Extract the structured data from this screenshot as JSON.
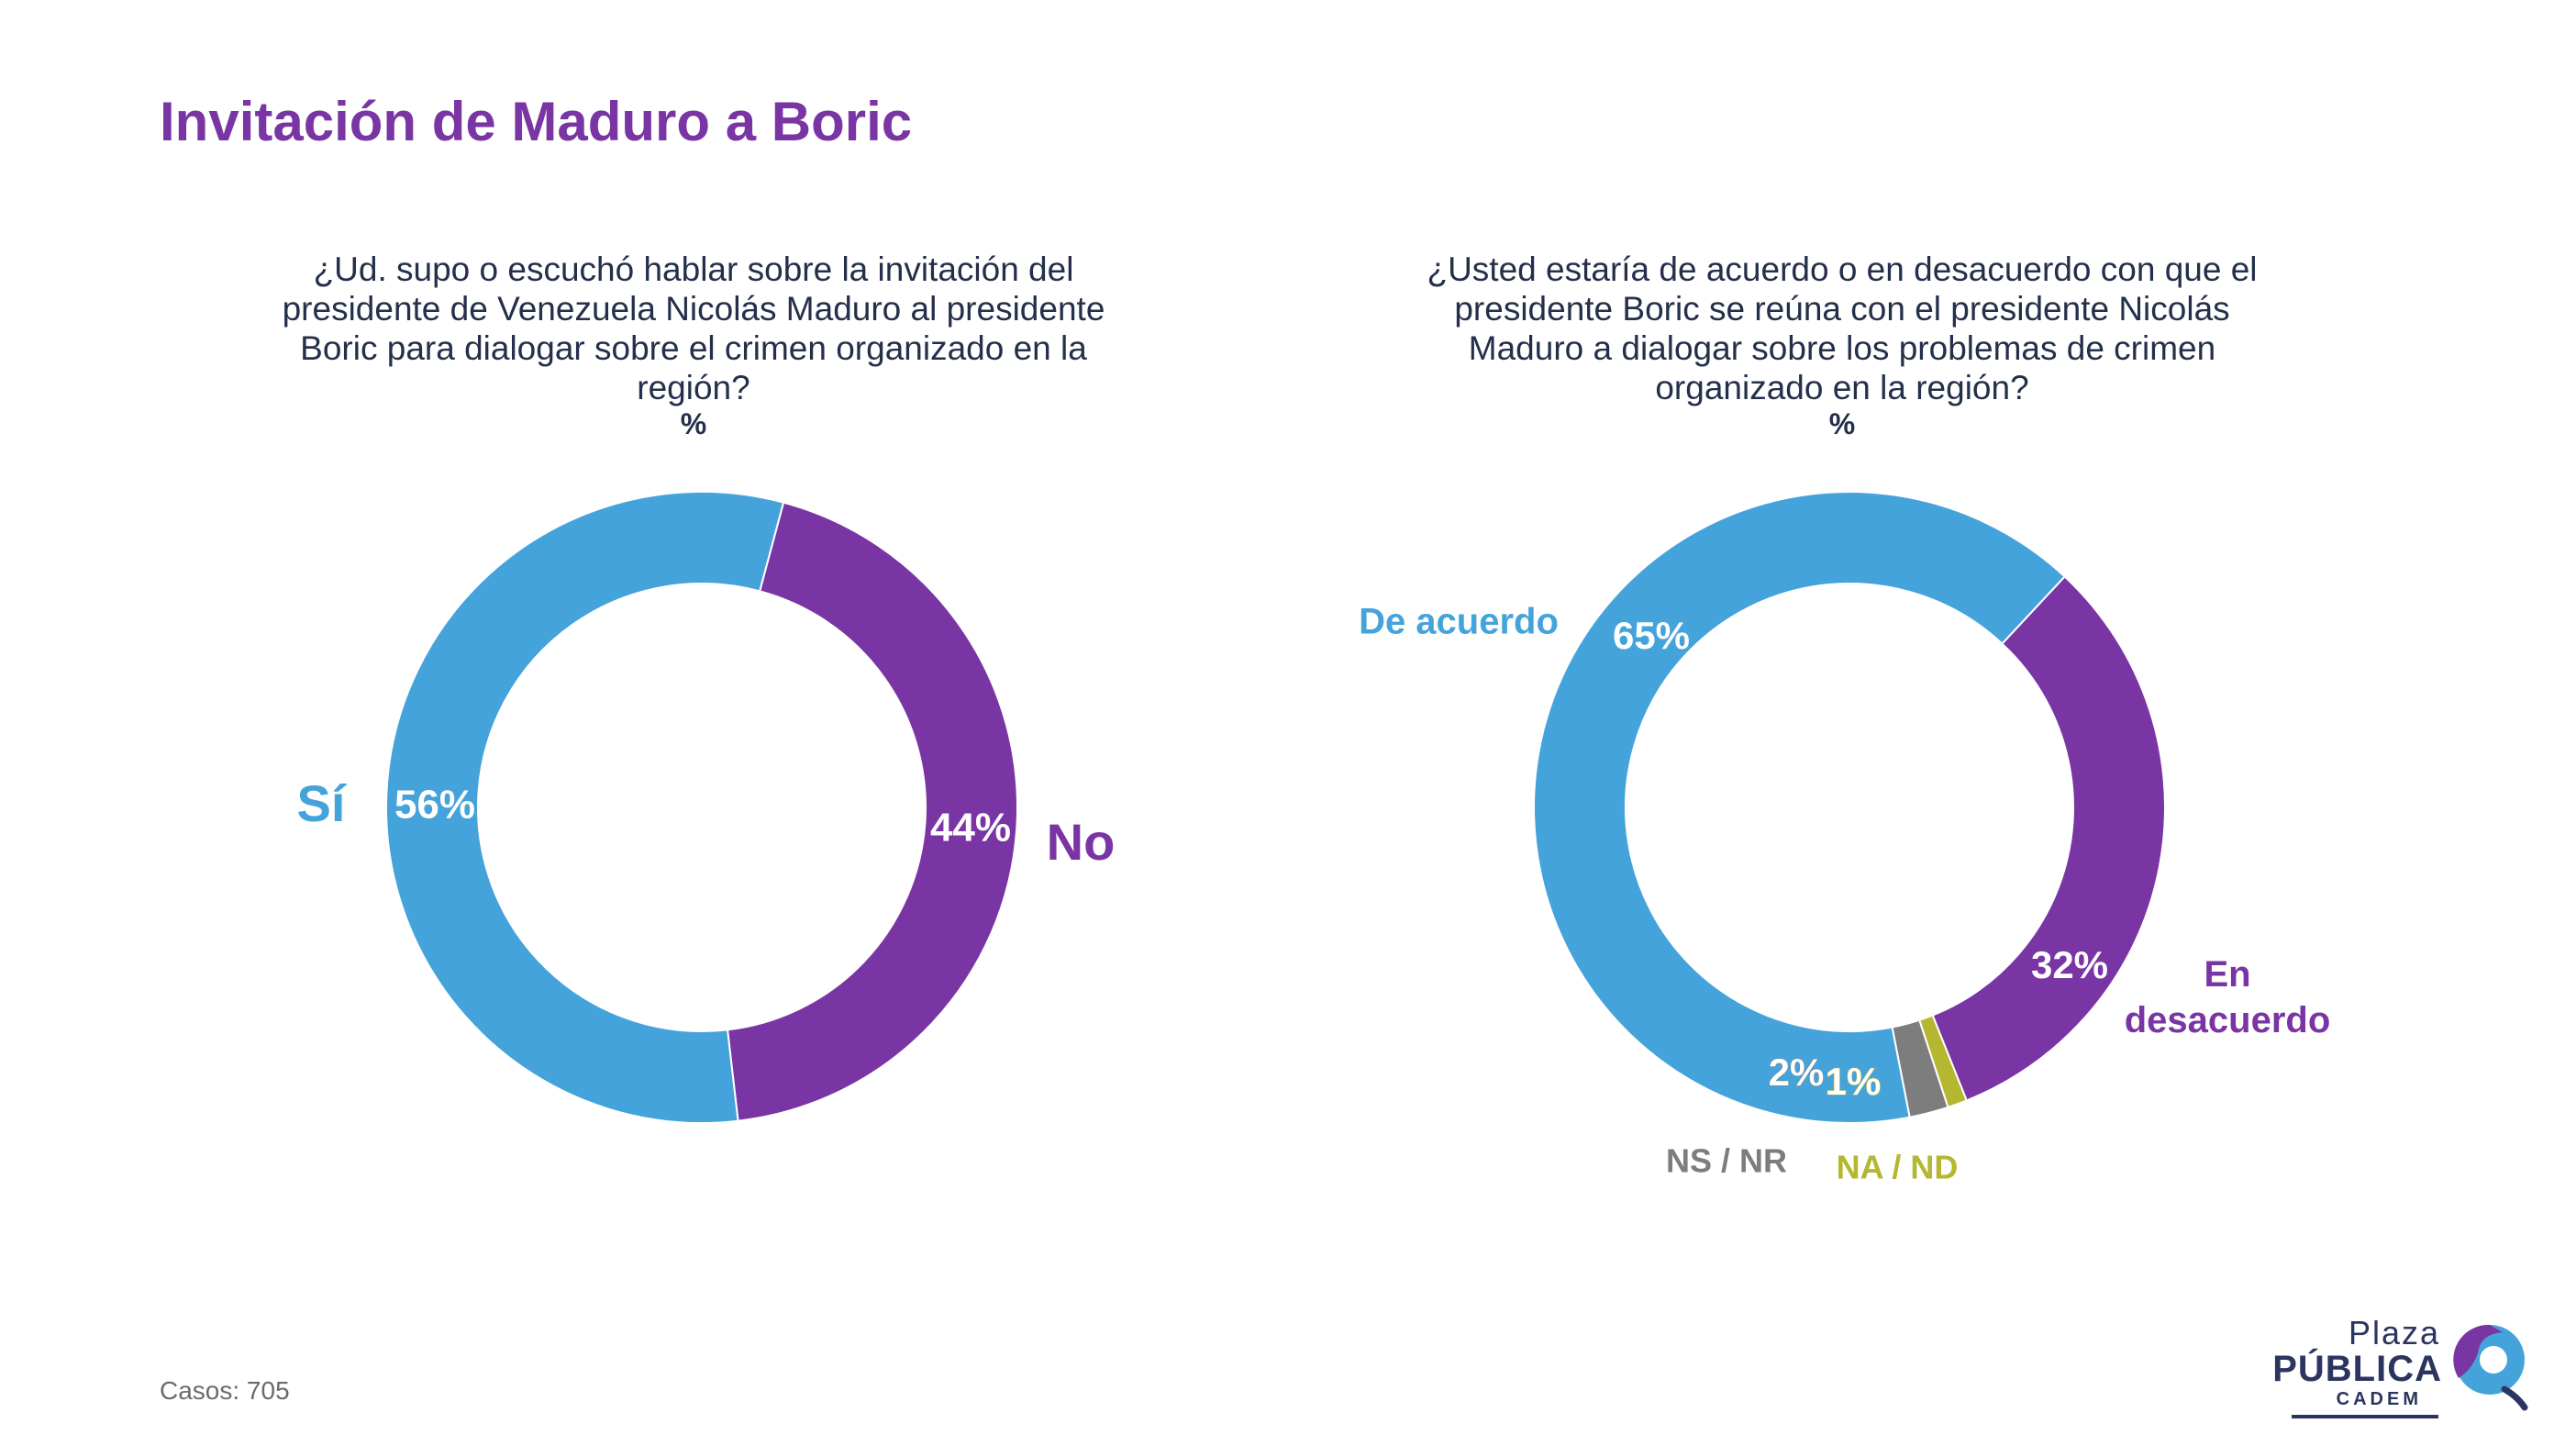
{
  "title": "Invitación de Maduro a Boric",
  "footer": {
    "cases": "Casos: 705"
  },
  "logo": {
    "line1": "Plaza",
    "line2": "PÚBLICA",
    "line3": "CADEM"
  },
  "colors": {
    "title": "#7a35a4",
    "blue": "#45a3db",
    "purple": "#7a35a4",
    "gray": "#7d7d7d",
    "olive": "#b5b731",
    "text": "#24304a"
  },
  "chart_data": [
    {
      "type": "pie",
      "donut": true,
      "question": "¿Ud. supo o escuchó hablar sobre la invitación del presidente de Venezuela Nicolás Maduro al presidente Boric para dialogar sobre el crimen organizado en la región?",
      "unit": "%",
      "slices": [
        {
          "name": "No",
          "value": 44,
          "label": "44%",
          "color": "#7a35a4"
        },
        {
          "name": "Sí",
          "value": 56,
          "label": "56%",
          "color": "#45a3db"
        }
      ]
    },
    {
      "type": "pie",
      "donut": true,
      "question": "¿Usted estaría de acuerdo o en desacuerdo con que el presidente Boric se reúna con el presidente Nicolás Maduro a dialogar sobre los problemas de crimen organizado en la región?",
      "unit": "%",
      "slices": [
        {
          "name": "En desacuerdo",
          "value": 32,
          "label": "32%",
          "color": "#7a35a4"
        },
        {
          "name": "NA / ND",
          "value": 1,
          "label": "1%",
          "color": "#b5b731"
        },
        {
          "name": "NS / NR",
          "value": 2,
          "label": "2%",
          "color": "#7d7d7d"
        },
        {
          "name": "De acuerdo",
          "value": 65,
          "label": "65%",
          "color": "#45a3db"
        }
      ]
    }
  ]
}
